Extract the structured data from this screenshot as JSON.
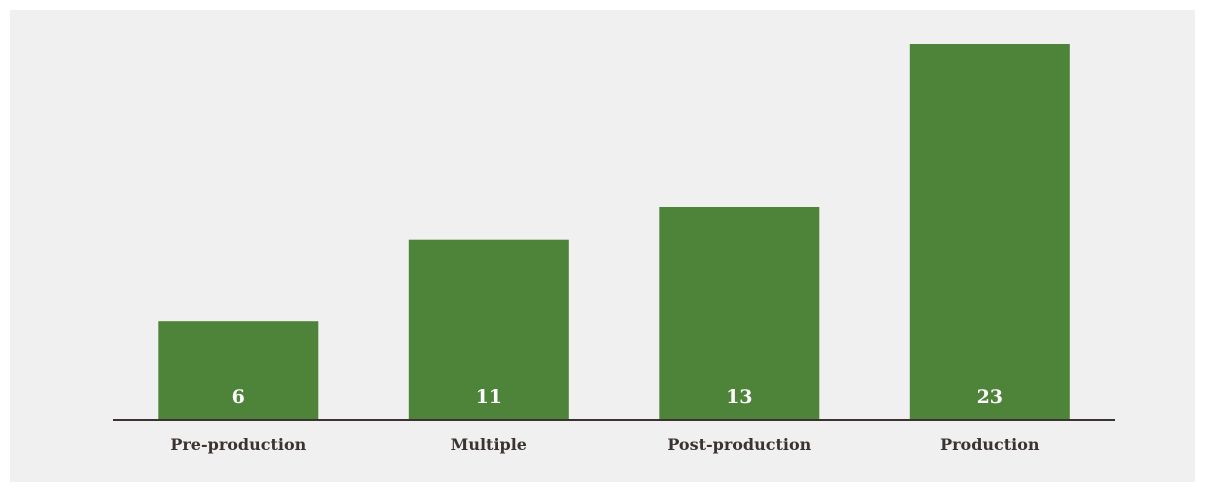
{
  "colors": {
    "background": "#f1f0f0",
    "bar": "#4e833a",
    "axis": "#3b3330",
    "value_label": "#ffffff",
    "tick_label": "#3b3330"
  },
  "chart_data": {
    "type": "bar",
    "categories": [
      "Pre-production",
      "Multiple",
      "Post-production",
      "Production"
    ],
    "values": [
      6,
      11,
      13,
      23
    ],
    "title": "",
    "xlabel": "",
    "ylabel": "",
    "ylim": [
      0,
      23
    ],
    "grid": false,
    "legend": "none",
    "data_labels": true
  }
}
